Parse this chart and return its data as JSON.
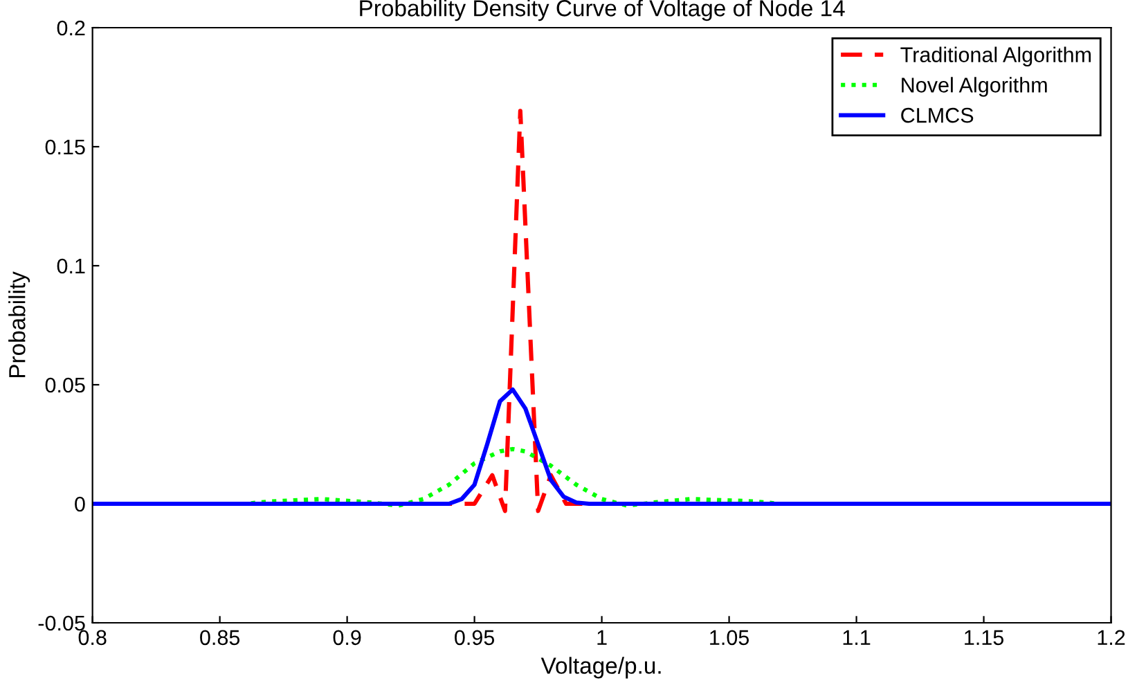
{
  "chart_data": {
    "type": "line",
    "title": "Probability Density Curve of Voltage of Node 14",
    "xlabel": "Voltage/p.u.",
    "ylabel": "Probability",
    "xlim": [
      0.8,
      1.2
    ],
    "xticks": [
      0.8,
      0.85,
      0.9,
      0.95,
      1,
      1.05,
      1.1,
      1.15,
      1.2
    ],
    "ylim": [
      -0.05,
      0.2
    ],
    "yticks": [
      -0.05,
      0,
      0.05,
      0.1,
      0.15,
      0.2
    ],
    "grid": false,
    "legend": "top right",
    "series": [
      {
        "name": "Traditional Algorithm",
        "color": "#ff0000",
        "line_style": "dashed",
        "x": [
          0.8,
          0.945,
          0.95,
          0.957,
          0.962,
          0.968,
          0.975,
          0.98,
          0.986,
          1.2
        ],
        "values": [
          0,
          0,
          0,
          0.012,
          -0.003,
          0.165,
          -0.003,
          0.012,
          0,
          0
        ]
      },
      {
        "name": "Novel Algorithm",
        "color": "#00ff00",
        "line_style": "dotted",
        "x": [
          0.8,
          0.86,
          0.87,
          0.89,
          0.91,
          0.92,
          0.93,
          0.94,
          0.95,
          0.96,
          0.965,
          0.97,
          0.98,
          0.99,
          1.0,
          1.01,
          1.02,
          1.035,
          1.06,
          1.07,
          1.2
        ],
        "values": [
          0,
          0,
          0.001,
          0.002,
          0.0005,
          -0.0008,
          0.002,
          0.008,
          0.017,
          0.022,
          0.023,
          0.022,
          0.016,
          0.008,
          0.002,
          -0.0008,
          0.0005,
          0.002,
          0.001,
          0,
          0
        ]
      },
      {
        "name": "CLMCS",
        "color": "#0000ff",
        "line_style": "solid",
        "x": [
          0.8,
          0.94,
          0.945,
          0.95,
          0.955,
          0.96,
          0.965,
          0.97,
          0.975,
          0.98,
          0.985,
          0.99,
          0.995,
          1.2
        ],
        "values": [
          0,
          0,
          0.002,
          0.008,
          0.025,
          0.043,
          0.048,
          0.04,
          0.025,
          0.01,
          0.003,
          0.0005,
          0,
          0
        ]
      }
    ]
  }
}
